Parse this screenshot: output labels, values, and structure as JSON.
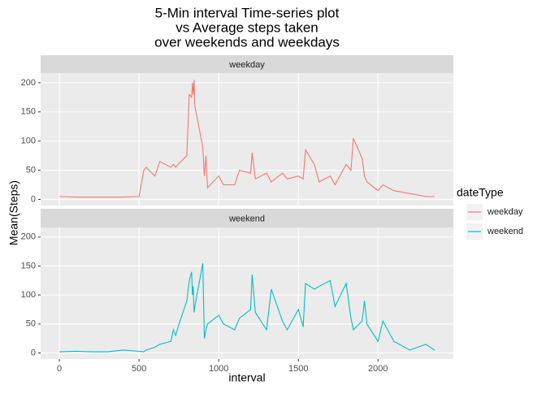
{
  "chart_data": {
    "type": "line",
    "title": [
      "5-Min interval Time-series plot",
      "vs Average steps taken",
      "over weekends and weekdays"
    ],
    "x_label": "interval",
    "y_label": "Mean(Steps)",
    "legend_title": "dateType",
    "x": [
      0,
      100,
      200,
      300,
      400,
      500,
      530,
      545,
      600,
      630,
      700,
      715,
      730,
      745,
      800,
      815,
      830,
      835,
      840,
      845,
      850,
      900,
      910,
      920,
      930,
      1000,
      1030,
      1100,
      1130,
      1200,
      1210,
      1230,
      1300,
      1330,
      1400,
      1430,
      1500,
      1530,
      1545,
      1600,
      1630,
      1700,
      1730,
      1800,
      1830,
      1845,
      1900,
      1915,
      1930,
      2000,
      2030,
      2100,
      2200,
      2300,
      2355
    ],
    "series": [
      {
        "name": "weekday",
        "color": "#F8766D",
        "values": [
          5,
          4,
          4,
          4,
          4,
          5,
          50,
          55,
          40,
          65,
          55,
          60,
          55,
          60,
          75,
          180,
          175,
          200,
          180,
          205,
          160,
          90,
          40,
          75,
          20,
          40,
          25,
          25,
          50,
          45,
          80,
          35,
          45,
          30,
          45,
          35,
          40,
          35,
          85,
          60,
          30,
          40,
          25,
          60,
          50,
          105,
          70,
          40,
          30,
          15,
          25,
          15,
          10,
          5,
          5
        ]
      },
      {
        "name": "weekend",
        "color": "#00BFC4",
        "values": [
          2,
          3,
          2,
          2,
          5,
          3,
          2,
          5,
          10,
          15,
          20,
          40,
          30,
          45,
          90,
          125,
          140,
          100,
          115,
          70,
          80,
          155,
          25,
          40,
          50,
          65,
          50,
          40,
          60,
          75,
          135,
          70,
          40,
          110,
          55,
          40,
          75,
          45,
          120,
          110,
          115,
          125,
          80,
          120,
          60,
          40,
          55,
          90,
          50,
          20,
          55,
          20,
          5,
          15,
          5
        ]
      }
    ],
    "xlim": [
      -117.75,
      2472.75
    ],
    "xticks": [
      0,
      500,
      1000,
      1500,
      2000
    ],
    "ylim": [
      -10.5,
      216.5
    ],
    "yticks": [
      0,
      50,
      100,
      150,
      200
    ],
    "grid": true,
    "legend": "right"
  }
}
